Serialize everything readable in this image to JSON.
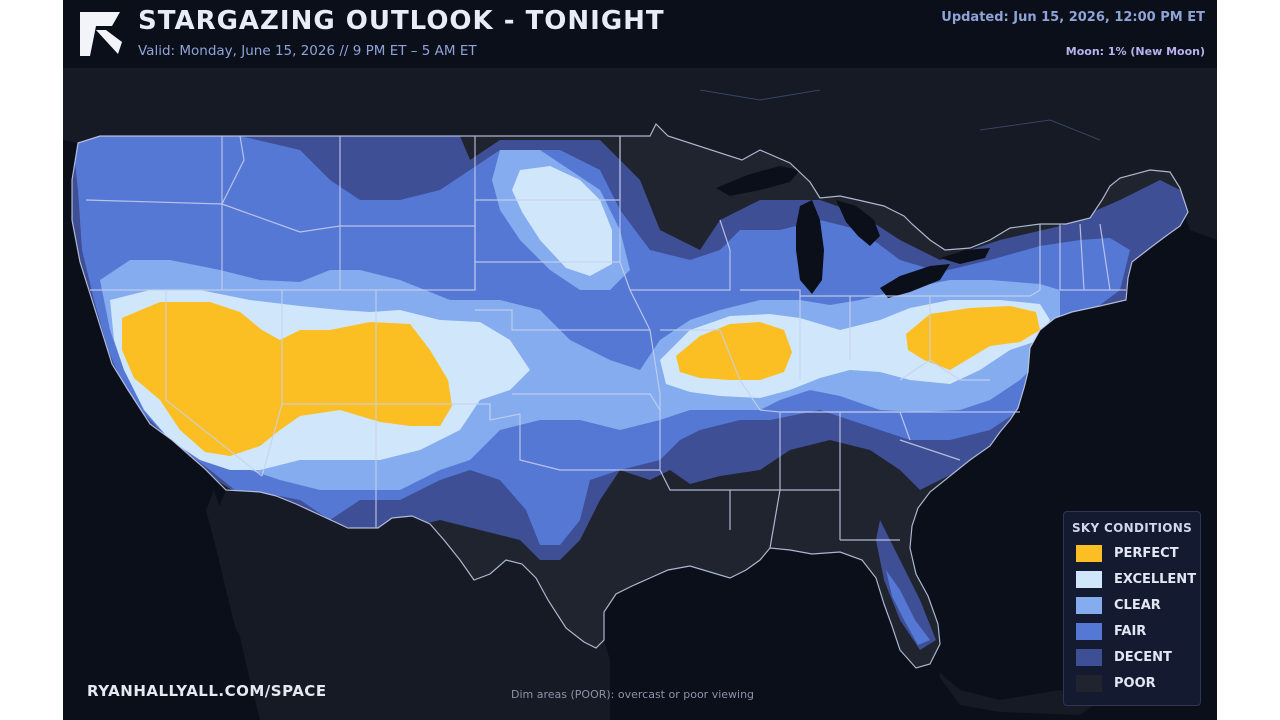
{
  "header": {
    "title": "STARGAZING OUTLOOK - TONIGHT",
    "valid_text": "Valid: Monday, June 15, 2026  //  9 PM ET – 5 AM ET",
    "updated_text": "Updated: Jun 15, 2026, 12:00 PM ET",
    "moon_text": "Moon: 1% (New Moon)"
  },
  "footer": {
    "site": "RYANHALLYALL.COM/SPACE",
    "note": "Dim areas (POOR): overcast or poor viewing"
  },
  "legend": {
    "title": "SKY CONDITIONS",
    "items": [
      {
        "label": "PERFECT",
        "color": "#fbbf24"
      },
      {
        "label": "EXCELLENT",
        "color": "#cfe6fb"
      },
      {
        "label": "CLEAR",
        "color": "#84acef"
      },
      {
        "label": "FAIR",
        "color": "#5678d5"
      },
      {
        "label": "DECENT",
        "color": "#3e4f96"
      },
      {
        "label": "POOR",
        "color": "#20242f"
      }
    ]
  },
  "colors": {
    "background": "#0b0f1a",
    "land_outside": "#181c26",
    "boundaries": "#c9d1ec",
    "water": "#0b0f1a"
  }
}
